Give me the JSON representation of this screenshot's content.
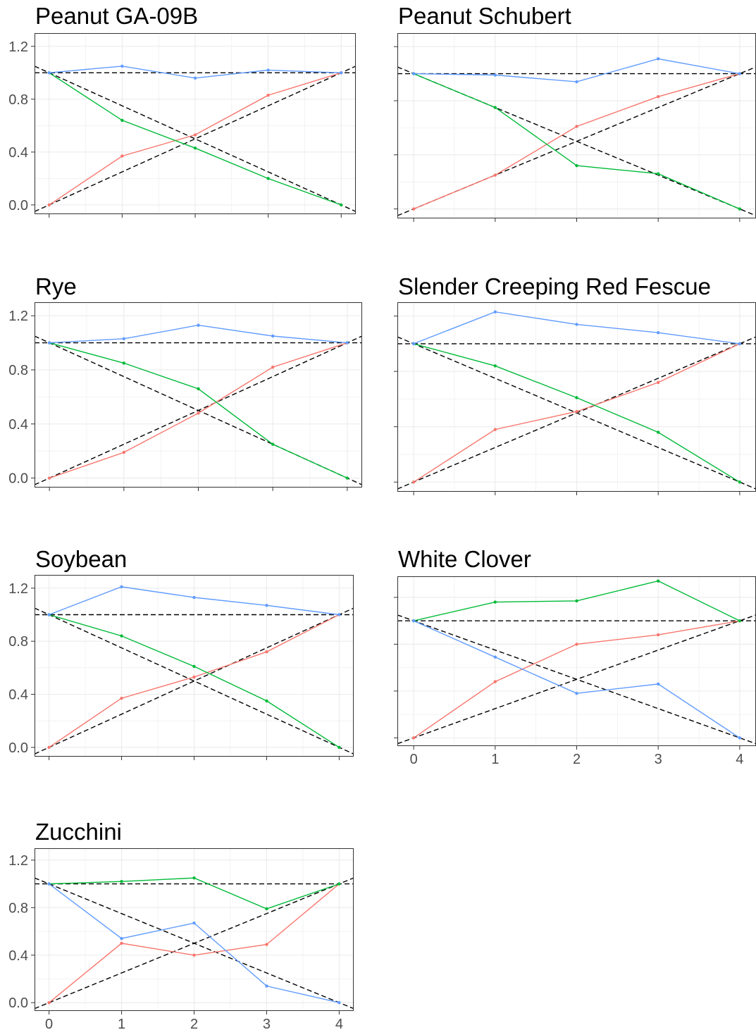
{
  "colors": {
    "red": "#f8766d",
    "green": "#00ba38",
    "blue": "#619cff",
    "reference": "#000000",
    "grid": "#ebebeb",
    "frame": "#333333"
  },
  "chart_data": [
    {
      "type": "line",
      "title": "Peanut GA-09B",
      "x": [
        0,
        1,
        2,
        3,
        4
      ],
      "ylim": [
        -0.07,
        1.3
      ],
      "y_ticks": [
        "0.0",
        "0.4",
        "0.8",
        "1.2"
      ],
      "x_ticks": [],
      "series": [
        {
          "color": "red",
          "values": [
            0.0,
            0.37,
            0.53,
            0.83,
            1.0
          ]
        },
        {
          "color": "green",
          "values": [
            1.0,
            0.64,
            0.43,
            0.2,
            0.0
          ]
        },
        {
          "color": "blue",
          "values": [
            1.0,
            1.05,
            0.96,
            1.02,
            1.0
          ]
        }
      ]
    },
    {
      "type": "line",
      "title": "Peanut Schubert",
      "x": [
        0,
        1,
        2,
        3,
        4
      ],
      "ylim": [
        -0.07,
        1.3
      ],
      "y_ticks": [],
      "x_ticks": [],
      "series": [
        {
          "color": "red",
          "values": [
            0.0,
            0.25,
            0.61,
            0.83,
            1.0
          ]
        },
        {
          "color": "green",
          "values": [
            1.0,
            0.75,
            0.32,
            0.26,
            0.0
          ]
        },
        {
          "color": "blue",
          "values": [
            1.0,
            0.99,
            0.94,
            1.11,
            1.0
          ]
        }
      ]
    },
    {
      "type": "line",
      "title": "Rye",
      "x": [
        0,
        1,
        2,
        3,
        4
      ],
      "ylim": [
        -0.07,
        1.3
      ],
      "y_ticks": [
        "0.0",
        "0.4",
        "0.8",
        "1.2"
      ],
      "x_ticks": [],
      "series": [
        {
          "color": "red",
          "values": [
            0.0,
            0.19,
            0.48,
            0.82,
            1.0
          ]
        },
        {
          "color": "green",
          "values": [
            1.0,
            0.85,
            0.66,
            0.25,
            0.0
          ]
        },
        {
          "color": "blue",
          "values": [
            1.0,
            1.03,
            1.13,
            1.05,
            1.0
          ]
        }
      ]
    },
    {
      "type": "line",
      "title": "Slender Creeping Red Fescue",
      "x": [
        0,
        1,
        2,
        3,
        4
      ],
      "ylim": [
        -0.07,
        1.3
      ],
      "y_ticks": [],
      "x_ticks": [],
      "series": [
        {
          "color": "red",
          "values": [
            0.0,
            0.38,
            0.51,
            0.72,
            1.0
          ]
        },
        {
          "color": "green",
          "values": [
            1.0,
            0.84,
            0.61,
            0.36,
            0.0
          ]
        },
        {
          "color": "blue",
          "values": [
            1.0,
            1.23,
            1.14,
            1.08,
            1.0
          ]
        }
      ]
    },
    {
      "type": "line",
      "title": "Soybean",
      "x": [
        0,
        1,
        2,
        3,
        4
      ],
      "ylim": [
        -0.07,
        1.3
      ],
      "y_ticks": [
        "0.0",
        "0.4",
        "0.8",
        "1.2"
      ],
      "x_ticks": [],
      "series": [
        {
          "color": "red",
          "values": [
            0.0,
            0.37,
            0.53,
            0.72,
            1.0
          ]
        },
        {
          "color": "green",
          "values": [
            1.0,
            0.84,
            0.61,
            0.35,
            0.0
          ]
        },
        {
          "color": "blue",
          "values": [
            1.0,
            1.21,
            1.13,
            1.07,
            1.0
          ]
        }
      ]
    },
    {
      "type": "line",
      "title": "White Clover",
      "x": [
        0,
        1,
        2,
        3,
        4
      ],
      "ylim": [
        -0.07,
        1.38
      ],
      "y_ticks": [],
      "x_ticks": [
        "0",
        "1",
        "2",
        "3",
        "4"
      ],
      "series": [
        {
          "color": "red",
          "values": [
            0.0,
            0.48,
            0.8,
            0.88,
            1.0
          ]
        },
        {
          "color": "green",
          "values": [
            1.0,
            1.16,
            1.17,
            1.34,
            1.0
          ]
        },
        {
          "color": "blue",
          "values": [
            1.0,
            0.69,
            0.38,
            0.46,
            0.0
          ]
        }
      ]
    },
    {
      "type": "line",
      "title": "Zucchini",
      "x": [
        0,
        1,
        2,
        3,
        4
      ],
      "ylim": [
        -0.07,
        1.3
      ],
      "y_ticks": [
        "0.0",
        "0.4",
        "0.8",
        "1.2"
      ],
      "x_ticks": [
        "0",
        "1",
        "2",
        "3",
        "4"
      ],
      "series": [
        {
          "color": "red",
          "values": [
            0.0,
            0.5,
            0.4,
            0.49,
            1.0
          ]
        },
        {
          "color": "green",
          "values": [
            1.0,
            1.02,
            1.05,
            0.79,
            1.0
          ]
        },
        {
          "color": "blue",
          "values": [
            1.0,
            0.54,
            0.67,
            0.14,
            0.0
          ]
        }
      ]
    }
  ]
}
